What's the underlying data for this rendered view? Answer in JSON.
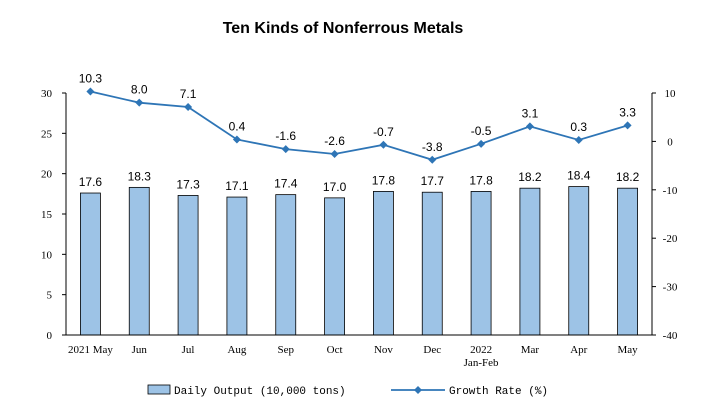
{
  "chart_data": {
    "type": "bar+line",
    "title": "Ten Kinds of Nonferrous Metals",
    "categories": [
      [
        "2021 May"
      ],
      [
        "Jun"
      ],
      [
        "Jul"
      ],
      [
        "Aug"
      ],
      [
        "Sep"
      ],
      [
        "Oct"
      ],
      [
        "Nov"
      ],
      [
        "Dec"
      ],
      [
        "2022",
        "Jan-Feb"
      ],
      [
        "Mar"
      ],
      [
        "Apr"
      ],
      [
        "May"
      ]
    ],
    "series": [
      {
        "name": "Daily Output (10,000 tons)",
        "type": "bar",
        "axis": "left",
        "color": "#9DC3E6",
        "values": [
          17.6,
          18.3,
          17.3,
          17.1,
          17.4,
          17.0,
          17.8,
          17.7,
          17.8,
          18.2,
          18.4,
          18.2
        ],
        "labels": [
          "17.6",
          "18.3",
          "17.3",
          "17.1",
          "17.4",
          "17.0",
          "17.8",
          "17.7",
          "17.8",
          "18.2",
          "18.4",
          "18.2"
        ]
      },
      {
        "name": "Growth Rate (%)",
        "type": "line",
        "axis": "right",
        "color": "#2E75B6",
        "values": [
          10.3,
          8.0,
          7.1,
          0.4,
          -1.6,
          -2.6,
          -0.7,
          -3.8,
          -0.5,
          3.1,
          0.3,
          3.3
        ],
        "labels": [
          "10.3",
          "8.0",
          "7.1",
          "0.4",
          "-1.6",
          "-2.6",
          "-0.7",
          "-3.8",
          "-0.5",
          "3.1",
          "0.3",
          "3.3"
        ]
      }
    ],
    "y_left": {
      "ylim": [
        0,
        30
      ],
      "ticks": [
        "0",
        "5",
        "10",
        "15",
        "20",
        "25",
        "30"
      ]
    },
    "y_right": {
      "ylim": [
        -40,
        10
      ],
      "ticks": [
        "-40",
        "-30",
        "-20",
        "-10",
        "0",
        "10"
      ]
    },
    "grid": false,
    "legend_position": "bottom"
  }
}
